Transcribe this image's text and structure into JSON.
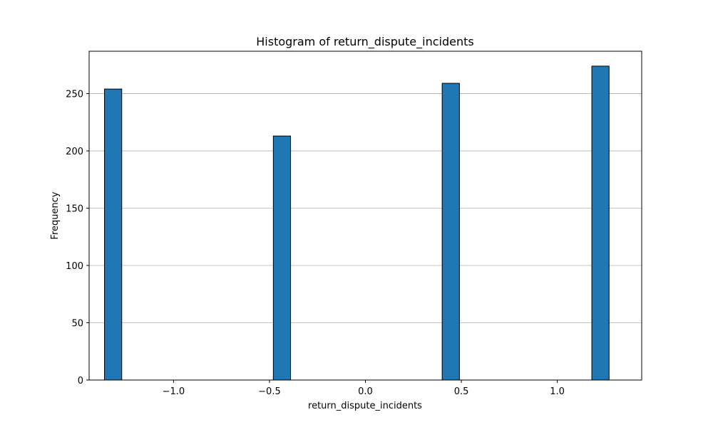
{
  "chart_data": {
    "type": "bar",
    "title": "Histogram of return_dispute_incidents",
    "xlabel": "return_dispute_incidents",
    "ylabel": "Frequency",
    "xlim": [
      -1.44,
      1.44
    ],
    "ylim": [
      0,
      287
    ],
    "x_ticks": [
      -1.0,
      -0.5,
      0.0,
      0.5,
      1.0
    ],
    "x_tick_labels": [
      "−1.0",
      "−0.5",
      "0.0",
      "0.5",
      "1.0"
    ],
    "y_ticks": [
      0,
      50,
      100,
      150,
      200,
      250
    ],
    "y_tick_labels": [
      "0",
      "50",
      "100",
      "150",
      "200",
      "250"
    ],
    "bins": [
      {
        "x0": -1.36,
        "x1": -1.27,
        "value": 254
      },
      {
        "x0": -0.48,
        "x1": -0.39,
        "value": 213
      },
      {
        "x0": 0.4,
        "x1": 0.49,
        "value": 259
      },
      {
        "x0": 1.18,
        "x1": 1.27,
        "value": 274
      }
    ],
    "grid": "y",
    "bar_color": "#1f77b4",
    "edge_color": "#000000"
  }
}
